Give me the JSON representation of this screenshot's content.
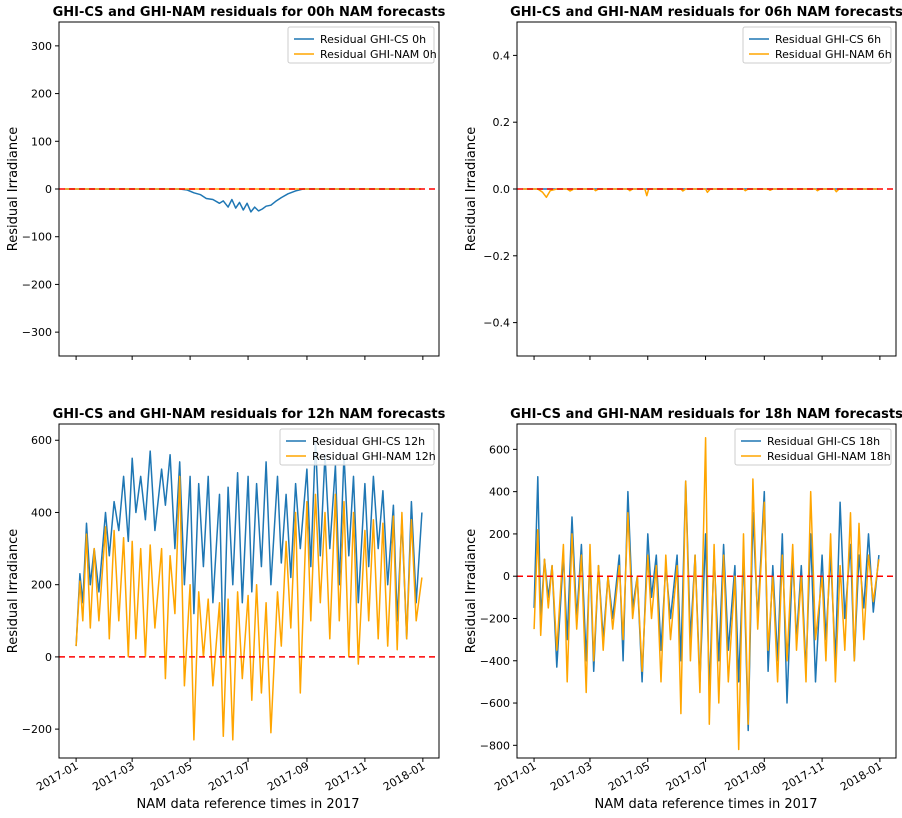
{
  "figure": {
    "xlabel": "NAM data reference times in 2017",
    "x_ticks": [
      "2017-01",
      "2017-03",
      "2017-05",
      "2017-07",
      "2017-09",
      "2017-11",
      "2018-01"
    ],
    "x_tick_dates": [
      "2017-01-01",
      "2017-03-01",
      "2017-05-01",
      "2017-07-01",
      "2017-09-01",
      "2017-11-01",
      "2018-01-01"
    ]
  },
  "colors": {
    "cs": "#1f77b4",
    "nam": "#ffa500",
    "zero_line": "#ff0000"
  },
  "chart_data": [
    {
      "type": "line",
      "title": "GHI-CS and GHI-NAM residuals for 00h NAM forecasts",
      "ylabel": "Residual Irradiance",
      "ylim": [
        -350,
        350
      ],
      "yticks": [
        -300,
        -200,
        -100,
        0,
        100,
        200,
        300
      ],
      "ytick_labels": [
        "−300",
        "−200",
        "−100",
        "0",
        "100",
        "200",
        "300"
      ],
      "xlim": [
        "2016-12-14",
        "2018-01-18"
      ],
      "legend": "upper right",
      "show_xtick_labels": false,
      "zero_line": 0,
      "series": [
        {
          "name": "Residual GHI-CS 0h",
          "color_key": "cs",
          "x": [
            "2016-12-20",
            "2017-04-20",
            "2017-04-28",
            "2017-05-05",
            "2017-05-12",
            "2017-05-18",
            "2017-05-25",
            "2017-06-01",
            "2017-06-05",
            "2017-06-10",
            "2017-06-14",
            "2017-06-18",
            "2017-06-22",
            "2017-06-26",
            "2017-06-30",
            "2017-07-04",
            "2017-07-08",
            "2017-07-12",
            "2017-07-16",
            "2017-07-20",
            "2017-07-25",
            "2017-07-30",
            "2017-08-05",
            "2017-08-12",
            "2017-08-20",
            "2017-08-28",
            "2017-12-30"
          ],
          "y": [
            0,
            0,
            -2,
            -8,
            -12,
            -20,
            -22,
            -30,
            -25,
            -38,
            -22,
            -40,
            -28,
            -44,
            -30,
            -48,
            -38,
            -46,
            -42,
            -36,
            -34,
            -26,
            -18,
            -10,
            -4,
            0,
            0
          ]
        },
        {
          "name": "Residual GHI-NAM 0h",
          "color_key": "nam",
          "x": [
            "2016-12-20",
            "2017-12-30"
          ],
          "y": [
            0,
            0
          ]
        }
      ]
    },
    {
      "type": "line",
      "title": "GHI-CS and GHI-NAM residuals for 06h NAM forecasts",
      "ylabel": "Residual Irradiance",
      "ylim": [
        -0.5,
        0.5
      ],
      "yticks": [
        -0.4,
        -0.2,
        0.0,
        0.2,
        0.4
      ],
      "ytick_labels": [
        "−0.4",
        "−0.2",
        "0.0",
        "0.2",
        "0.4"
      ],
      "xlim": [
        "2016-12-14",
        "2018-01-18"
      ],
      "legend": "upper right",
      "show_xtick_labels": false,
      "zero_line": 0,
      "series": [
        {
          "name": "Residual GHI-CS 6h",
          "color_key": "cs",
          "x": [
            "2016-12-20",
            "2017-12-30"
          ],
          "y": [
            0,
            0
          ]
        },
        {
          "name": "Residual GHI-NAM 6h",
          "color_key": "nam",
          "x": [
            "2016-12-20",
            "2017-01-05",
            "2017-01-10",
            "2017-01-14",
            "2017-01-18",
            "2017-01-25",
            "2017-02-05",
            "2017-02-08",
            "2017-02-12",
            "2017-03-05",
            "2017-03-07",
            "2017-03-10",
            "2017-04-10",
            "2017-04-12",
            "2017-04-15",
            "2017-04-28",
            "2017-04-30",
            "2017-05-02",
            "2017-06-05",
            "2017-06-07",
            "2017-06-10",
            "2017-07-01",
            "2017-07-03",
            "2017-07-06",
            "2017-08-10",
            "2017-08-12",
            "2017-08-15",
            "2017-09-05",
            "2017-09-07",
            "2017-09-10",
            "2017-10-25",
            "2017-10-27",
            "2017-10-30",
            "2017-11-14",
            "2017-11-16",
            "2017-11-19",
            "2017-12-30"
          ],
          "y": [
            0,
            0,
            -0.01,
            -0.025,
            -0.005,
            0,
            0,
            -0.006,
            0,
            0,
            -0.005,
            0,
            0,
            -0.005,
            0,
            0,
            -0.02,
            0,
            0,
            -0.006,
            0,
            0,
            -0.01,
            0,
            0,
            -0.005,
            0,
            0,
            -0.004,
            0,
            0,
            -0.005,
            0,
            0,
            -0.008,
            0,
            0
          ]
        }
      ]
    },
    {
      "type": "line",
      "title": "GHI-CS and GHI-NAM residuals for 12h NAM forecasts",
      "ylabel": "Residual Irradiance",
      "ylim": [
        -280,
        645
      ],
      "yticks": [
        -200,
        0,
        200,
        400,
        600
      ],
      "ytick_labels": [
        "−200",
        "0",
        "200",
        "400",
        "600"
      ],
      "xlim": [
        "2016-12-14",
        "2018-01-18"
      ],
      "legend": "upper right",
      "show_xtick_labels": true,
      "zero_line": 0,
      "series": [
        {
          "name": "Residual GHI-CS 12h",
          "color_key": "cs",
          "x": [
            "2017-01-01",
            "2017-01-05",
            "2017-01-08",
            "2017-01-12",
            "2017-01-16",
            "2017-01-20",
            "2017-01-25",
            "2017-02-01",
            "2017-02-05",
            "2017-02-10",
            "2017-02-15",
            "2017-02-20",
            "2017-02-25",
            "2017-03-01",
            "2017-03-05",
            "2017-03-10",
            "2017-03-15",
            "2017-03-20",
            "2017-03-25",
            "2017-04-01",
            "2017-04-05",
            "2017-04-10",
            "2017-04-15",
            "2017-04-20",
            "2017-04-25",
            "2017-05-01",
            "2017-05-05",
            "2017-05-10",
            "2017-05-15",
            "2017-05-20",
            "2017-05-25",
            "2017-06-01",
            "2017-06-05",
            "2017-06-10",
            "2017-06-15",
            "2017-06-20",
            "2017-06-25",
            "2017-07-01",
            "2017-07-05",
            "2017-07-10",
            "2017-07-15",
            "2017-07-20",
            "2017-07-25",
            "2017-08-01",
            "2017-08-05",
            "2017-08-10",
            "2017-08-15",
            "2017-08-20",
            "2017-08-25",
            "2017-09-01",
            "2017-09-05",
            "2017-09-10",
            "2017-09-15",
            "2017-09-20",
            "2017-09-25",
            "2017-10-01",
            "2017-10-05",
            "2017-10-10",
            "2017-10-15",
            "2017-10-20",
            "2017-10-25",
            "2017-11-01",
            "2017-11-05",
            "2017-11-10",
            "2017-11-15",
            "2017-11-20",
            "2017-11-25",
            "2017-12-01",
            "2017-12-05",
            "2017-12-10",
            "2017-12-15",
            "2017-12-20",
            "2017-12-25",
            "2017-12-31"
          ],
          "y": [
            30,
            230,
            150,
            370,
            200,
            300,
            180,
            400,
            280,
            430,
            350,
            500,
            320,
            550,
            400,
            500,
            380,
            570,
            350,
            520,
            420,
            560,
            300,
            540,
            200,
            500,
            120,
            480,
            250,
            500,
            150,
            450,
            0,
            470,
            200,
            510,
            150,
            500,
            180,
            480,
            250,
            540,
            200,
            500,
            260,
            450,
            220,
            480,
            300,
            520,
            250,
            600,
            280,
            560,
            300,
            530,
            200,
            560,
            280,
            500,
            150,
            480,
            250,
            500,
            300,
            460,
            200,
            420,
            100,
            380,
            50,
            430,
            150,
            400
          ]
        },
        {
          "name": "Residual GHI-NAM 12h",
          "color_key": "nam",
          "x": [
            "2017-01-01",
            "2017-01-05",
            "2017-01-08",
            "2017-01-12",
            "2017-01-16",
            "2017-01-20",
            "2017-01-25",
            "2017-02-01",
            "2017-02-05",
            "2017-02-10",
            "2017-02-15",
            "2017-02-20",
            "2017-02-25",
            "2017-03-01",
            "2017-03-05",
            "2017-03-10",
            "2017-03-15",
            "2017-03-20",
            "2017-03-25",
            "2017-04-01",
            "2017-04-05",
            "2017-04-10",
            "2017-04-15",
            "2017-04-20",
            "2017-04-25",
            "2017-05-01",
            "2017-05-05",
            "2017-05-10",
            "2017-05-15",
            "2017-05-20",
            "2017-05-25",
            "2017-06-01",
            "2017-06-05",
            "2017-06-10",
            "2017-06-15",
            "2017-06-20",
            "2017-06-25",
            "2017-07-01",
            "2017-07-05",
            "2017-07-10",
            "2017-07-15",
            "2017-07-20",
            "2017-07-25",
            "2017-08-01",
            "2017-08-05",
            "2017-08-10",
            "2017-08-15",
            "2017-08-20",
            "2017-08-25",
            "2017-09-01",
            "2017-09-05",
            "2017-09-10",
            "2017-09-15",
            "2017-09-20",
            "2017-09-25",
            "2017-10-01",
            "2017-10-05",
            "2017-10-10",
            "2017-10-15",
            "2017-10-20",
            "2017-10-25",
            "2017-11-01",
            "2017-11-05",
            "2017-11-10",
            "2017-11-15",
            "2017-11-20",
            "2017-11-25",
            "2017-12-01",
            "2017-12-05",
            "2017-12-10",
            "2017-12-15",
            "2017-12-20",
            "2017-12-25",
            "2017-12-31"
          ],
          "y": [
            30,
            210,
            100,
            340,
            80,
            300,
            100,
            360,
            50,
            350,
            100,
            330,
            0,
            320,
            50,
            300,
            0,
            310,
            80,
            300,
            -60,
            280,
            120,
            500,
            -80,
            200,
            -230,
            180,
            0,
            160,
            -80,
            150,
            -220,
            160,
            -230,
            180,
            -60,
            170,
            -120,
            200,
            -100,
            150,
            -210,
            180,
            30,
            320,
            80,
            400,
            -100,
            430,
            100,
            450,
            150,
            400,
            50,
            450,
            100,
            430,
            0,
            400,
            -20,
            350,
            100,
            380,
            50,
            370,
            30,
            390,
            20,
            400,
            50,
            380,
            100,
            220
          ]
        }
      ]
    },
    {
      "type": "line",
      "title": "GHI-CS and GHI-NAM residuals for 18h NAM forecasts",
      "ylabel": "Residual Irradiance",
      "ylim": [
        -860,
        720
      ],
      "yticks": [
        -800,
        -600,
        -400,
        -200,
        0,
        200,
        400,
        600
      ],
      "ytick_labels": [
        "−800",
        "−600",
        "−400",
        "−200",
        "0",
        "200",
        "400",
        "600"
      ],
      "xlim": [
        "2016-12-14",
        "2018-01-18"
      ],
      "legend": "upper right",
      "show_xtick_labels": true,
      "zero_line": 0,
      "series": [
        {
          "name": "Residual GHI-CS 18h",
          "color_key": "cs",
          "x": [
            "2017-01-01",
            "2017-01-05",
            "2017-01-08",
            "2017-01-12",
            "2017-01-16",
            "2017-01-20",
            "2017-01-25",
            "2017-02-01",
            "2017-02-05",
            "2017-02-10",
            "2017-02-15",
            "2017-02-20",
            "2017-02-25",
            "2017-03-01",
            "2017-03-05",
            "2017-03-10",
            "2017-03-15",
            "2017-03-20",
            "2017-03-25",
            "2017-04-01",
            "2017-04-05",
            "2017-04-10",
            "2017-04-15",
            "2017-04-20",
            "2017-04-25",
            "2017-05-01",
            "2017-05-05",
            "2017-05-10",
            "2017-05-15",
            "2017-05-20",
            "2017-05-25",
            "2017-06-01",
            "2017-06-05",
            "2017-06-10",
            "2017-06-15",
            "2017-06-20",
            "2017-06-25",
            "2017-07-01",
            "2017-07-05",
            "2017-07-10",
            "2017-07-15",
            "2017-07-20",
            "2017-07-25",
            "2017-08-01",
            "2017-08-05",
            "2017-08-10",
            "2017-08-15",
            "2017-08-20",
            "2017-08-25",
            "2017-09-01",
            "2017-09-05",
            "2017-09-10",
            "2017-09-15",
            "2017-09-20",
            "2017-09-25",
            "2017-10-01",
            "2017-10-05",
            "2017-10-10",
            "2017-10-15",
            "2017-10-20",
            "2017-10-25",
            "2017-11-01",
            "2017-11-05",
            "2017-11-10",
            "2017-11-15",
            "2017-11-20",
            "2017-11-25",
            "2017-12-01",
            "2017-12-05",
            "2017-12-10",
            "2017-12-15",
            "2017-12-20",
            "2017-12-25",
            "2017-12-31"
          ],
          "y": [
            -150,
            470,
            -200,
            80,
            -100,
            50,
            -430,
            100,
            -300,
            280,
            -200,
            150,
            -400,
            100,
            -450,
            50,
            -300,
            0,
            -200,
            100,
            -400,
            400,
            -150,
            0,
            -500,
            200,
            -100,
            100,
            -350,
            50,
            -200,
            100,
            -400,
            450,
            -300,
            100,
            -500,
            200,
            -550,
            100,
            -400,
            150,
            -350,
            50,
            -500,
            100,
            -730,
            300,
            -200,
            400,
            -450,
            50,
            -400,
            200,
            -600,
            100,
            -300,
            50,
            -450,
            200,
            -500,
            100,
            -300,
            100,
            -400,
            350,
            -200,
            150,
            -400,
            100,
            -150,
            200,
            -170,
            100
          ]
        },
        {
          "name": "Residual GHI-NAM 18h",
          "color_key": "nam",
          "x": [
            "2017-01-01",
            "2017-01-05",
            "2017-01-08",
            "2017-01-12",
            "2017-01-16",
            "2017-01-20",
            "2017-01-25",
            "2017-02-01",
            "2017-02-05",
            "2017-02-10",
            "2017-02-15",
            "2017-02-20",
            "2017-02-25",
            "2017-03-01",
            "2017-03-05",
            "2017-03-10",
            "2017-03-15",
            "2017-03-20",
            "2017-03-25",
            "2017-04-01",
            "2017-04-05",
            "2017-04-10",
            "2017-04-15",
            "2017-04-20",
            "2017-04-25",
            "2017-05-01",
            "2017-05-05",
            "2017-05-10",
            "2017-05-15",
            "2017-05-20",
            "2017-05-25",
            "2017-06-01",
            "2017-06-05",
            "2017-06-10",
            "2017-06-15",
            "2017-06-20",
            "2017-06-25",
            "2017-07-01",
            "2017-07-05",
            "2017-07-10",
            "2017-07-15",
            "2017-07-20",
            "2017-07-25",
            "2017-08-01",
            "2017-08-05",
            "2017-08-10",
            "2017-08-15",
            "2017-08-20",
            "2017-08-25",
            "2017-09-01",
            "2017-09-05",
            "2017-09-10",
            "2017-09-15",
            "2017-09-20",
            "2017-09-25",
            "2017-10-01",
            "2017-10-05",
            "2017-10-10",
            "2017-10-15",
            "2017-10-20",
            "2017-10-25",
            "2017-11-01",
            "2017-11-05",
            "2017-11-10",
            "2017-11-15",
            "2017-11-20",
            "2017-11-25",
            "2017-12-01",
            "2017-12-05",
            "2017-12-10",
            "2017-12-15",
            "2017-12-20",
            "2017-12-25",
            "2017-12-31"
          ],
          "y": [
            -250,
            220,
            -280,
            80,
            -150,
            50,
            -350,
            150,
            -500,
            200,
            -250,
            100,
            -550,
            150,
            -400,
            50,
            -350,
            0,
            -250,
            50,
            -300,
            300,
            -200,
            0,
            -450,
            100,
            -200,
            50,
            -500,
            100,
            -300,
            50,
            -650,
            450,
            -400,
            100,
            -550,
            655,
            -700,
            150,
            -600,
            100,
            -500,
            0,
            -820,
            200,
            -700,
            460,
            -250,
            350,
            -350,
            0,
            -500,
            100,
            -400,
            150,
            -350,
            0,
            -500,
            400,
            -300,
            0,
            -400,
            200,
            -500,
            50,
            -350,
            300,
            -400,
            250,
            -300,
            100,
            -120,
            80
          ]
        }
      ]
    }
  ]
}
